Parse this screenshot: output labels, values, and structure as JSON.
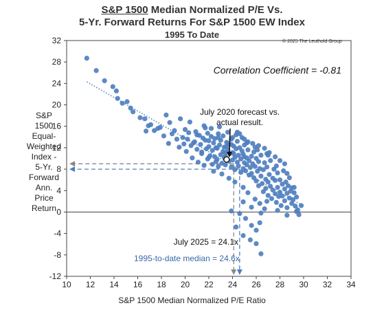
{
  "chart_data": {
    "type": "scatter",
    "title_prefix": "S&P 1500",
    "title_rest": " Median Normalized P/E Vs.",
    "title_line2": "5-Yr. Forward Returns For S&P 1500 EW Index",
    "subtitle": "1995 To Date",
    "copyright": "© 2025 The Leuthold Group",
    "xlabel": "S&P 1500 Median Normalized P/E Ratio",
    "ylabel": "S&P\n1500\nEqual-\nWeighted\nIndex -\n5-Yr.\nForward\nAnn.\nPrice\nReturn",
    "xlim": [
      10,
      34
    ],
    "ylim": [
      -12,
      32
    ],
    "xticks": [
      "10",
      "12",
      "14",
      "16",
      "18",
      "20",
      "22",
      "24",
      "26",
      "28",
      "30",
      "32",
      "34"
    ],
    "yticks": [
      "-12",
      "-8",
      "-4",
      "0",
      "4",
      "8",
      "12",
      "16",
      "20",
      "24",
      "28",
      "32"
    ],
    "correlation_label": "Correlation Coefficient = -0.81",
    "callout_label_line1": "July 2020 forecast vs.",
    "callout_label_line2": "actual result.",
    "callout_point": {
      "x": 23.5,
      "y": 9.8
    },
    "current_label": "July 2025 = 24.1x",
    "current_x": 24.1,
    "current_y": 9.0,
    "median_label": "1995-to-date median = 24.6x",
    "median_x": 24.6,
    "median_y": 8.0,
    "trendline": {
      "x1": 11.7,
      "y1": 24.3,
      "x2": 30.0,
      "y2": 1.1
    },
    "colors": {
      "point": "#4f7fbf",
      "gray_arrow": "#888888",
      "blue_arrow": "#4f7fbf",
      "median_text": "#3a6aa8"
    },
    "points": [
      [
        11.7,
        28.7
      ],
      [
        12.5,
        26.4
      ],
      [
        13.2,
        24.5
      ],
      [
        13.9,
        23.4
      ],
      [
        14.2,
        22.6
      ],
      [
        14.3,
        21.2
      ],
      [
        14.7,
        20.3
      ],
      [
        15.1,
        20.6
      ],
      [
        15.4,
        19.4
      ],
      [
        15.6,
        18.7
      ],
      [
        16.2,
        17.6
      ],
      [
        16.6,
        17.4
      ],
      [
        16.7,
        15.1
      ],
      [
        16.9,
        16.1
      ],
      [
        17.1,
        16.3
      ],
      [
        17.4,
        15.2
      ],
      [
        17.7,
        15.6
      ],
      [
        17.9,
        15.8
      ],
      [
        18.2,
        14.2
      ],
      [
        18.4,
        18.1
      ],
      [
        18.6,
        12.8
      ],
      [
        18.7,
        16.7
      ],
      [
        18.9,
        14.6
      ],
      [
        19.1,
        15.2
      ],
      [
        19.3,
        13.6
      ],
      [
        19.5,
        12.1
      ],
      [
        19.6,
        17.4
      ],
      [
        19.8,
        13.9
      ],
      [
        20.0,
        15.4
      ],
      [
        20.1,
        11.3
      ],
      [
        20.3,
        14.8
      ],
      [
        20.4,
        16.8
      ],
      [
        20.5,
        12.4
      ],
      [
        20.6,
        10.1
      ],
      [
        20.8,
        13.1
      ],
      [
        20.9,
        15.0
      ],
      [
        21.0,
        11.7
      ],
      [
        21.1,
        9.3
      ],
      [
        21.2,
        14.3
      ],
      [
        21.3,
        12.6
      ],
      [
        21.4,
        10.9
      ],
      [
        21.5,
        13.8
      ],
      [
        21.6,
        8.7
      ],
      [
        21.7,
        15.7
      ],
      [
        21.8,
        11.8
      ],
      [
        21.9,
        9.9
      ],
      [
        22.0,
        13.3
      ],
      [
        22.0,
        12.2
      ],
      [
        22.1,
        10.5
      ],
      [
        22.2,
        14.1
      ],
      [
        22.3,
        8.9
      ],
      [
        22.3,
        11.5
      ],
      [
        22.4,
        12.9
      ],
      [
        22.5,
        10.3
      ],
      [
        22.5,
        13.7
      ],
      [
        22.6,
        9.4
      ],
      [
        22.7,
        11.9
      ],
      [
        22.8,
        14.6
      ],
      [
        22.8,
        8.5
      ],
      [
        22.9,
        12.5
      ],
      [
        23.0,
        10.7
      ],
      [
        23.0,
        13.4
      ],
      [
        23.1,
        9.1
      ],
      [
        23.2,
        11.3
      ],
      [
        23.2,
        14.2
      ],
      [
        23.3,
        12.1
      ],
      [
        23.4,
        8.8
      ],
      [
        23.4,
        10.4
      ],
      [
        23.5,
        13.0
      ],
      [
        23.6,
        11.6
      ],
      [
        23.7,
        9.5
      ],
      [
        23.7,
        12.7
      ],
      [
        23.8,
        10.9
      ],
      [
        23.9,
        8.4
      ],
      [
        23.9,
        13.6
      ],
      [
        24.0,
        11.1
      ],
      [
        24.0,
        9.7
      ],
      [
        24.1,
        12.3
      ],
      [
        24.2,
        10.2
      ],
      [
        24.2,
        7.9
      ],
      [
        24.3,
        11.8
      ],
      [
        24.4,
        9.3
      ],
      [
        24.4,
        13.2
      ],
      [
        24.5,
        10.6
      ],
      [
        24.5,
        8.6
      ],
      [
        24.6,
        12.0
      ],
      [
        24.7,
        9.9
      ],
      [
        24.7,
        7.4
      ],
      [
        24.8,
        11.4
      ],
      [
        24.9,
        8.1
      ],
      [
        24.9,
        10.8
      ],
      [
        25.0,
        9.2
      ],
      [
        25.0,
        12.5
      ],
      [
        25.1,
        7.7
      ],
      [
        25.2,
        10.1
      ],
      [
        25.2,
        8.8
      ],
      [
        25.3,
        11.6
      ],
      [
        25.4,
        9.6
      ],
      [
        25.4,
        6.9
      ],
      [
        25.5,
        8.3
      ],
      [
        25.6,
        10.4
      ],
      [
        25.6,
        7.2
      ],
      [
        25.7,
        9.0
      ],
      [
        25.8,
        11.2
      ],
      [
        25.8,
        6.4
      ],
      [
        25.9,
        8.5
      ],
      [
        26.0,
        10.0
      ],
      [
        26.0,
        5.8
      ],
      [
        26.1,
        7.6
      ],
      [
        26.2,
        9.4
      ],
      [
        26.2,
        4.9
      ],
      [
        26.3,
        8.1
      ],
      [
        26.4,
        6.7
      ],
      [
        26.4,
        10.6
      ],
      [
        26.5,
        5.3
      ],
      [
        26.6,
        7.9
      ],
      [
        26.6,
        3.8
      ],
      [
        26.7,
        9.2
      ],
      [
        26.8,
        6.1
      ],
      [
        26.8,
        4.4
      ],
      [
        26.9,
        8.4
      ],
      [
        27.0,
        5.6
      ],
      [
        27.0,
        3.1
      ],
      [
        27.1,
        7.0
      ],
      [
        27.2,
        4.8
      ],
      [
        27.2,
        9.6
      ],
      [
        27.3,
        2.5
      ],
      [
        27.4,
        6.3
      ],
      [
        27.4,
        4.1
      ],
      [
        27.5,
        8.0
      ],
      [
        27.6,
        3.4
      ],
      [
        27.6,
        5.9
      ],
      [
        27.7,
        1.8
      ],
      [
        27.8,
        7.3
      ],
      [
        27.8,
        4.6
      ],
      [
        27.9,
        2.9
      ],
      [
        28.0,
        6.0
      ],
      [
        28.0,
        3.7
      ],
      [
        28.1,
        1.2
      ],
      [
        28.2,
        5.2
      ],
      [
        28.2,
        3.0
      ],
      [
        28.3,
        7.7
      ],
      [
        28.4,
        4.3
      ],
      [
        28.4,
        2.1
      ],
      [
        28.5,
        5.6
      ],
      [
        28.6,
        3.5
      ],
      [
        28.6,
        0.8
      ],
      [
        28.7,
        4.9
      ],
      [
        28.8,
        2.6
      ],
      [
        28.8,
        6.4
      ],
      [
        28.9,
        3.9
      ],
      [
        29.0,
        1.6
      ],
      [
        29.0,
        4.5
      ],
      [
        29.1,
        2.3
      ],
      [
        29.2,
        3.6
      ],
      [
        29.3,
        1.1
      ],
      [
        29.4,
        2.8
      ],
      [
        29.5,
        0.4
      ],
      [
        29.6,
        -0.5
      ],
      [
        29.8,
        1.2
      ],
      [
        21.6,
        16.1
      ],
      [
        22.2,
        15.6
      ],
      [
        22.9,
        15.9
      ],
      [
        23.6,
        14.9
      ],
      [
        24.3,
        14.4
      ],
      [
        24.8,
        13.9
      ],
      [
        25.3,
        13.1
      ],
      [
        25.7,
        12.8
      ],
      [
        26.2,
        12.4
      ],
      [
        26.7,
        11.9
      ],
      [
        27.1,
        11.1
      ],
      [
        27.6,
        10.3
      ],
      [
        28.0,
        9.6
      ],
      [
        28.4,
        9.0
      ],
      [
        22.4,
        7.6
      ],
      [
        23.1,
        7.1
      ],
      [
        23.7,
        6.3
      ],
      [
        24.2,
        5.6
      ],
      [
        24.9,
        4.6
      ],
      [
        25.3,
        3.6
      ],
      [
        25.9,
        2.4
      ],
      [
        26.3,
        1.6
      ],
      [
        26.7,
        0.6
      ],
      [
        23.9,
        0.2
      ],
      [
        24.6,
        -0.3
      ],
      [
        25.1,
        -1.2
      ],
      [
        25.6,
        -2.5
      ],
      [
        26.0,
        -3.4
      ],
      [
        24.3,
        -2.8
      ],
      [
        24.9,
        -4.4
      ],
      [
        25.5,
        -5.2
      ],
      [
        26.0,
        -5.9
      ],
      [
        26.4,
        -7.8
      ],
      [
        26.3,
        -2.0
      ],
      [
        26.4,
        -0.2
      ],
      [
        24.9,
        1.9
      ],
      [
        25.6,
        0.9
      ],
      [
        26.9,
        2.0
      ],
      [
        27.8,
        0.3
      ],
      [
        28.6,
        -0.6
      ],
      [
        29.4,
        0.1
      ],
      [
        20.7,
        12.9
      ],
      [
        21.7,
        13.4
      ],
      [
        22.8,
        13.9
      ],
      [
        23.4,
        11.0
      ],
      [
        24.0,
        13.9
      ],
      [
        24.6,
        14.6
      ],
      [
        25.2,
        12.9
      ],
      [
        26.1,
        11.6
      ],
      [
        27.0,
        10.6
      ],
      [
        21.0,
        14.4
      ],
      [
        21.9,
        14.7
      ],
      [
        22.6,
        12.0
      ],
      [
        23.3,
        10.2
      ],
      [
        23.9,
        12.6
      ],
      [
        24.4,
        14.9
      ],
      [
        25.0,
        13.6
      ],
      [
        25.9,
        12.1
      ],
      [
        26.9,
        10.9
      ],
      [
        27.7,
        8.6
      ],
      [
        28.6,
        7.2
      ],
      [
        29.2,
        4.6
      ],
      [
        20.2,
        13.6
      ],
      [
        19.9,
        12.7
      ],
      [
        21.4,
        11.2
      ],
      [
        22.0,
        10.2
      ],
      [
        22.7,
        9.8
      ],
      [
        23.5,
        12.3
      ],
      [
        24.1,
        10.9
      ],
      [
        25.0,
        10.3
      ]
    ]
  }
}
